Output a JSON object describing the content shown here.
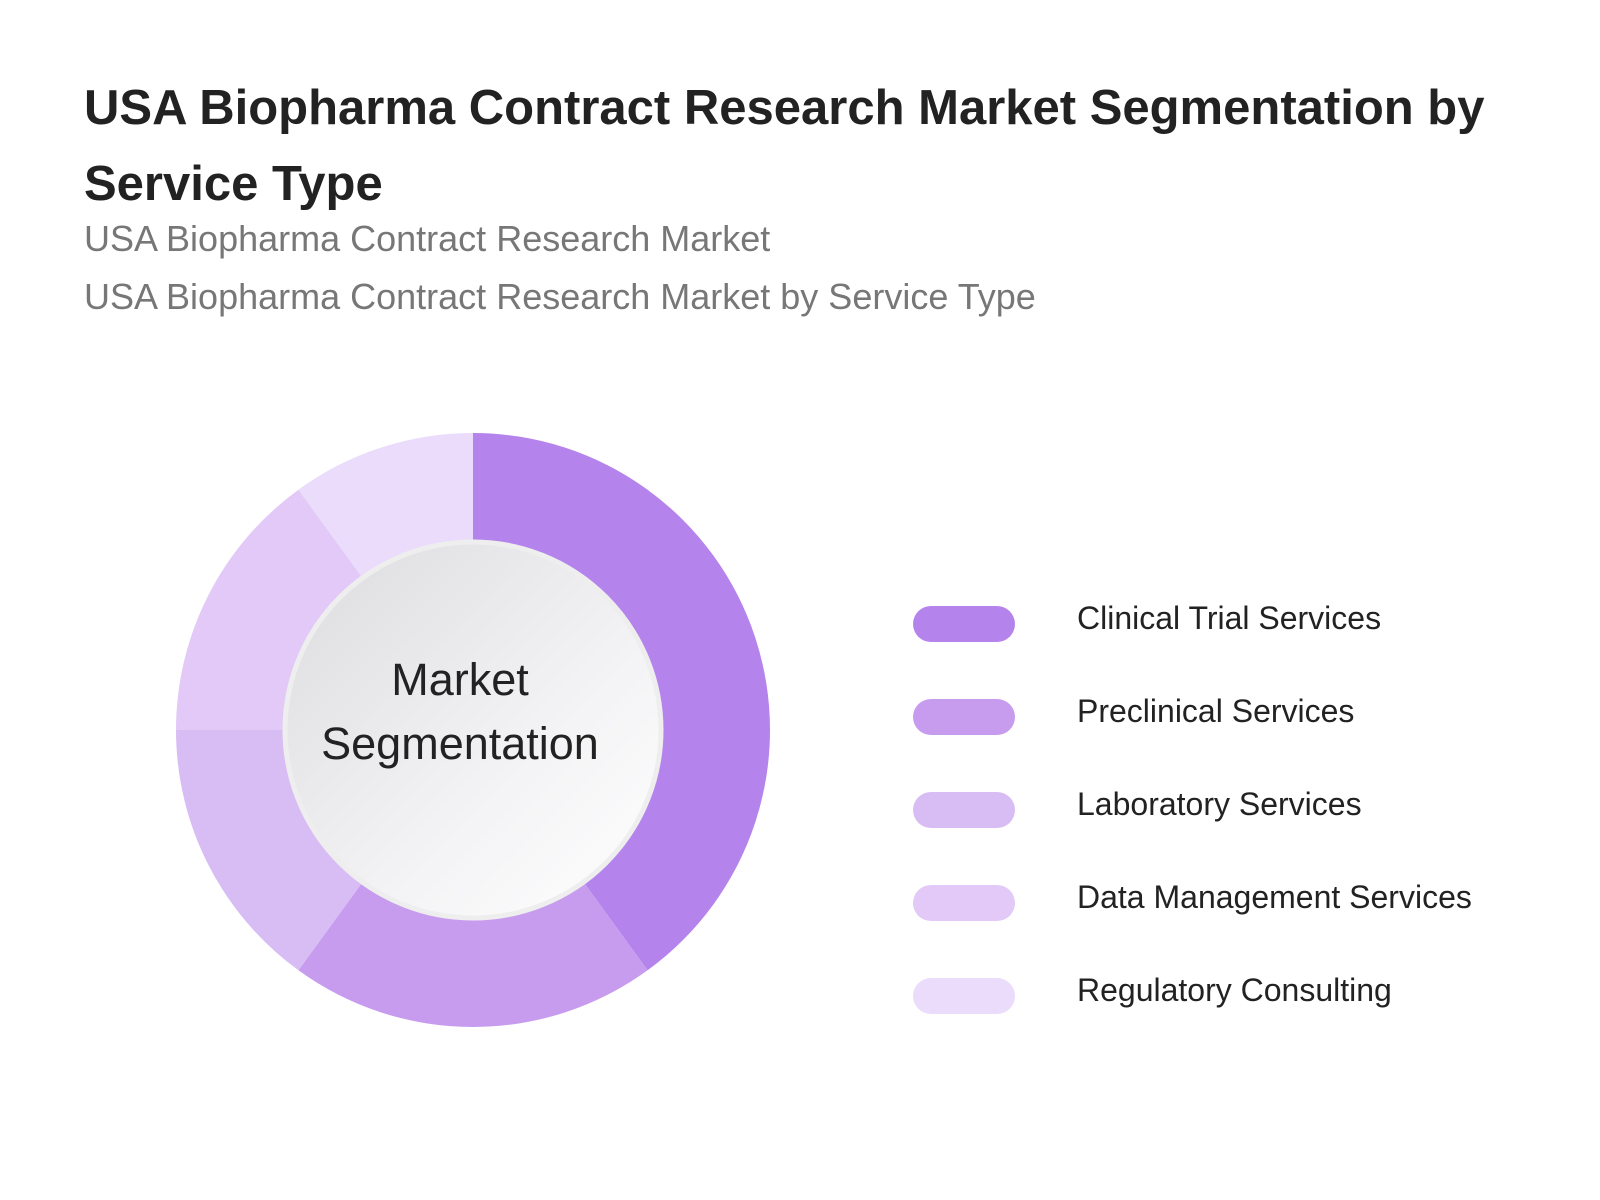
{
  "title": "USA Biopharma Contract Research Market Segmentation by Service Type",
  "subtitles": [
    "USA Biopharma Contract Research Market",
    "USA Biopharma Contract Research Market by Service Type"
  ],
  "center_label": "Market Segmentation",
  "chart_data": {
    "type": "pie",
    "donut": true,
    "title": "USA Biopharma Contract Research Market Segmentation by Service Type",
    "categories": [
      "Clinical Trial Services",
      "Preclinical Services",
      "Laboratory Services",
      "Data Management Services",
      "Regulatory Consulting"
    ],
    "values": [
      40,
      20,
      15,
      15,
      10
    ],
    "colors": [
      "#b583ec",
      "#c79cef",
      "#d8bdf5",
      "#e2c9f7",
      "#eadcfa"
    ],
    "legend_placement": "right"
  },
  "legend": [
    {
      "label": "Clinical Trial Services",
      "color": "#b583ec"
    },
    {
      "label": "Preclinical Services",
      "color": "#c79cef"
    },
    {
      "label": "Laboratory Services",
      "color": "#d8bdf5"
    },
    {
      "label": "Data Management Services",
      "color": "#e2c9f7"
    },
    {
      "label": "Regulatory Consulting",
      "color": "#eadcfa"
    }
  ]
}
